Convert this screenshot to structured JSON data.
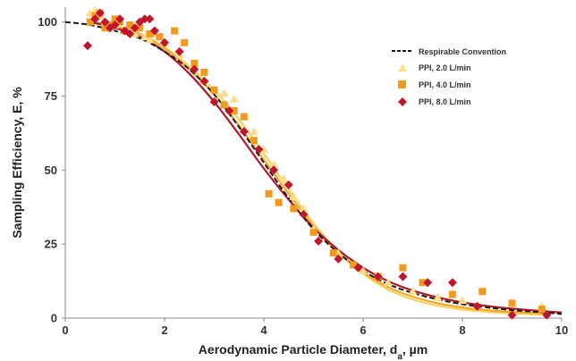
{
  "chart_data": {
    "type": "scatter",
    "title": "",
    "xlabel": "Aerodynamic Particle Diameter, d",
    "xlabel_subscript": "a",
    "xlabel_unit": ", µm",
    "ylabel": "Sampling Efficiency, E, %",
    "xlim": [
      0,
      10
    ],
    "ylim": [
      0,
      105
    ],
    "x_ticks": [
      "0",
      "2",
      "4",
      "6",
      "8",
      "10"
    ],
    "y_ticks": [
      "0",
      "25",
      "50",
      "75",
      "100"
    ],
    "grid": false,
    "legend_position": "top-right",
    "legend": [
      "Respirable Convention",
      "PPI, 2.0 L/min",
      "PPI, 4.0 L/min",
      "PPI, 8.0 L/min"
    ],
    "curves": [
      {
        "color": "#1a1a1a",
        "style": "dashed",
        "x": [
          0,
          0.5,
          1,
          1.5,
          2,
          2.5,
          3,
          3.5,
          4,
          4.5,
          5,
          5.5,
          6,
          6.5,
          7,
          7.5,
          8,
          8.5,
          9,
          9.5,
          10
        ],
        "y": [
          100,
          99,
          97,
          94.5,
          90,
          84,
          75.5,
          64.5,
          52.5,
          40.5,
          30,
          22,
          16,
          11.5,
          8.5,
          6.3,
          4.7,
          3.6,
          2.7,
          2.1,
          1.4
        ]
      },
      {
        "color": "#f7d060",
        "style": "solid",
        "x": [
          0.5,
          1,
          1.5,
          2,
          2.5,
          3,
          3.5,
          4,
          4.5,
          5,
          5.5,
          6,
          6.5,
          7,
          7.5,
          8,
          8.5,
          9,
          9.5,
          9.7
        ],
        "y": [
          100,
          98.5,
          96,
          91.5,
          85,
          77,
          67,
          55.5,
          43.5,
          32,
          22.5,
          15,
          9.7,
          6.3,
          4.2,
          2.9,
          2.1,
          1.6,
          1.2,
          1.1
        ]
      },
      {
        "color": "#f5a623",
        "style": "solid",
        "x": [
          0.5,
          1,
          1.5,
          2,
          2.5,
          3,
          3.5,
          4,
          4.5,
          5,
          5.5,
          6,
          6.5,
          7,
          7.5,
          8,
          8.5,
          9,
          9.5,
          9.7
        ],
        "y": [
          100,
          98.5,
          96,
          91,
          84,
          75.5,
          65,
          53.5,
          42,
          31,
          22,
          15.5,
          10.5,
          7.2,
          5,
          3.6,
          2.7,
          2.1,
          1.7,
          1.6
        ]
      },
      {
        "color": "#b0182a",
        "style": "solid",
        "x": [
          0.5,
          1,
          1.5,
          2,
          2.5,
          3,
          3.5,
          4,
          4.5,
          5,
          5.5,
          6,
          6.5,
          7,
          7.5,
          8,
          8.5,
          9,
          9.5,
          10
        ],
        "y": [
          100,
          98,
          95,
          90,
          82.5,
          73,
          62,
          50.5,
          40,
          30.5,
          23,
          17,
          12.5,
          9.3,
          7,
          5.3,
          4.1,
          3.2,
          2.5,
          1.9
        ]
      }
    ],
    "series": [
      {
        "name": "PPI, 2.0 L/min",
        "marker": "triangle",
        "color": "#fcdd8c",
        "x": [
          0.5,
          0.6,
          0.7,
          0.8,
          0.9,
          1.0,
          1.1,
          1.2,
          1.3,
          1.4,
          1.5,
          1.6,
          1.7,
          1.8,
          2.0,
          2.3,
          2.6,
          2.8,
          3.0,
          3.2,
          3.4,
          3.6,
          3.8,
          4.0,
          4.2,
          4.4,
          4.6,
          4.8,
          5.0,
          5.5,
          6.0,
          6.5,
          7.0,
          7.5,
          8.0,
          9.0,
          9.6
        ],
        "y": [
          103,
          104,
          102,
          100,
          98,
          99,
          100,
          97,
          98,
          96,
          99,
          95,
          94,
          96,
          93,
          89,
          85,
          80,
          77,
          76,
          74,
          68,
          63,
          57,
          52,
          47,
          41,
          37,
          30,
          22,
          16,
          12,
          9,
          7,
          6,
          5,
          4
        ]
      },
      {
        "name": "PPI, 4.0 L/min",
        "marker": "square",
        "color": "#f39a1e",
        "x": [
          0.5,
          0.6,
          0.7,
          0.8,
          0.9,
          1.0,
          1.1,
          1.2,
          1.3,
          1.5,
          1.7,
          1.9,
          2.2,
          2.4,
          2.6,
          2.8,
          3.0,
          3.2,
          3.4,
          3.6,
          3.8,
          4.1,
          4.3,
          4.6,
          5.0,
          5.4,
          5.8,
          6.3,
          6.8,
          7.2,
          7.8,
          8.4,
          9.0,
          9.6
        ],
        "y": [
          100,
          102,
          103,
          98,
          99,
          101,
          100,
          97,
          99,
          98,
          96,
          95,
          97,
          93,
          86,
          83,
          77,
          72,
          70,
          68,
          60,
          42,
          39,
          37,
          29,
          22,
          18,
          14,
          17,
          12,
          8,
          9,
          5,
          3
        ]
      },
      {
        "name": "PPI, 8.0 L/min",
        "marker": "diamond",
        "color": "#c0162c",
        "x": [
          0.45,
          0.6,
          0.7,
          0.8,
          0.9,
          1.0,
          1.1,
          1.2,
          1.3,
          1.4,
          1.5,
          1.6,
          1.7,
          1.8,
          2.0,
          2.3,
          2.6,
          2.8,
          3.0,
          3.3,
          3.6,
          3.9,
          4.2,
          4.5,
          4.8,
          5.1,
          5.5,
          5.9,
          6.3,
          6.8,
          7.3,
          7.8,
          8.3,
          9.0,
          9.7
        ],
        "y": [
          92,
          101,
          103,
          100,
          98,
          99,
          101,
          97,
          96,
          98,
          100,
          101,
          101,
          97,
          93,
          90,
          84,
          80,
          73,
          70,
          63,
          57,
          50,
          45,
          35,
          26,
          20,
          17,
          14,
          14,
          12,
          12,
          4,
          1,
          1
        ]
      }
    ]
  }
}
